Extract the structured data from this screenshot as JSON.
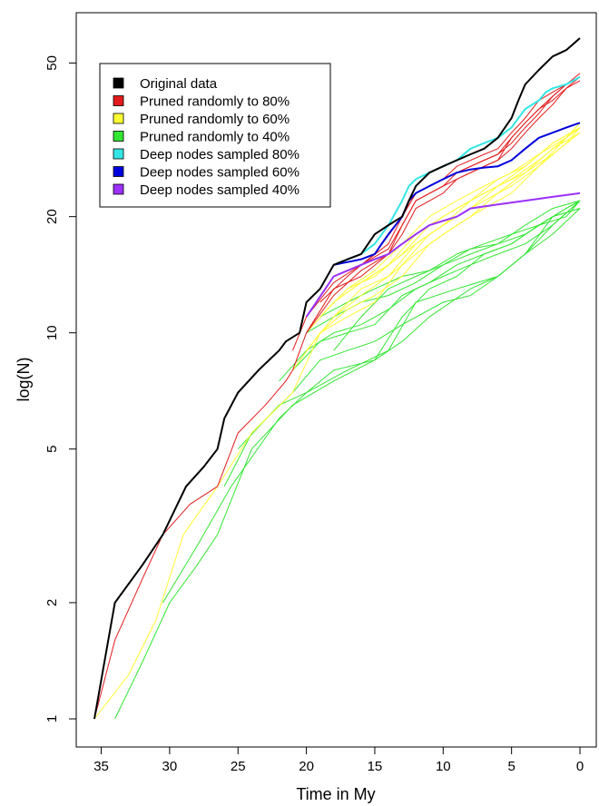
{
  "chart_data": {
    "type": "line",
    "title": "",
    "xlabel": "Time in My",
    "ylabel": "log(N)",
    "log_y": true,
    "x_reversed": true,
    "xlim": [
      35.5,
      0
    ],
    "ylim": [
      1,
      58
    ],
    "x_ticks": [
      35,
      30,
      25,
      20,
      15,
      10,
      5,
      0
    ],
    "y_ticks": [
      1,
      2,
      5,
      10,
      20,
      50
    ],
    "grid": false,
    "legend_position": "top-left",
    "legend": [
      {
        "label": "Original data",
        "color": "#000000"
      },
      {
        "label": "Pruned randomly to 80%",
        "color": "#e31a1c"
      },
      {
        "label": "Pruned randomly to 60%",
        "color": "#ffff33"
      },
      {
        "label": "Pruned randomly to 40%",
        "color": "#33e633"
      },
      {
        "label": "Deep nodes sampled 80%",
        "color": "#33e6e6"
      },
      {
        "label": "Deep nodes sampled 60%",
        "color": "#0000dd"
      },
      {
        "label": "Deep nodes sampled 40%",
        "color": "#9b30ff"
      }
    ],
    "series": [
      {
        "group": "Pruned randomly to 40%",
        "color": "#33e633",
        "width": 1,
        "x": [
          34,
          32,
          30,
          28,
          26.5,
          24,
          21,
          18,
          15,
          13,
          11,
          9,
          7,
          5,
          3,
          1,
          0
        ],
        "y": [
          1,
          1.4,
          2,
          2.5,
          3,
          5,
          6.5,
          7.5,
          8.5,
          11,
          13,
          14,
          16,
          17,
          19,
          20,
          22
        ]
      },
      {
        "group": "Pruned randomly to 40%",
        "color": "#33e633",
        "width": 1,
        "x": [
          30.5,
          28,
          25.5,
          22,
          20,
          17,
          14,
          12,
          9,
          6,
          4,
          2,
          0
        ],
        "y": [
          2,
          2.8,
          4,
          6,
          7,
          8,
          9,
          12,
          13,
          14,
          16,
          18,
          21
        ]
      },
      {
        "group": "Pruned randomly to 40%",
        "color": "#33e633",
        "width": 1,
        "x": [
          26,
          24,
          21,
          19,
          17,
          15,
          13,
          10,
          8,
          6,
          4,
          2,
          0
        ],
        "y": [
          4,
          5.5,
          7,
          8.5,
          9,
          9.5,
          10.5,
          12,
          12.5,
          14,
          16,
          19,
          22
        ]
      },
      {
        "group": "Pruned randomly to 40%",
        "color": "#33e633",
        "width": 1,
        "x": [
          25,
          22,
          20,
          18,
          15,
          13,
          11,
          8,
          6,
          4,
          2,
          0
        ],
        "y": [
          5,
          6.5,
          7,
          8,
          8.5,
          9.5,
          11,
          13,
          14,
          16,
          20,
          21
        ]
      },
      {
        "group": "Pruned randomly to 40%",
        "color": "#33e633",
        "width": 1,
        "x": [
          22,
          20,
          18,
          16,
          14,
          12,
          10,
          8,
          6,
          4,
          2,
          0
        ],
        "y": [
          7.5,
          9,
          10,
          10.5,
          11.5,
          13,
          14,
          15,
          16,
          17,
          19,
          22
        ]
      },
      {
        "group": "Pruned randomly to 40%",
        "color": "#33e633",
        "width": 1,
        "x": [
          21,
          19,
          17,
          15,
          13,
          11,
          9,
          7,
          5,
          3,
          1,
          0
        ],
        "y": [
          8,
          9.5,
          10,
          10.5,
          12.5,
          13.5,
          15,
          16,
          17,
          19,
          21,
          22
        ]
      },
      {
        "group": "Pruned randomly to 40%",
        "color": "#33e633",
        "width": 1,
        "x": [
          20,
          18,
          16,
          14,
          12,
          10,
          8,
          6,
          4,
          2,
          0
        ],
        "y": [
          10,
          11,
          12,
          12.5,
          13.5,
          15,
          16,
          17,
          18,
          20,
          21
        ]
      },
      {
        "group": "Pruned randomly to 40%",
        "color": "#33e633",
        "width": 1,
        "x": [
          19,
          17,
          15,
          13,
          11,
          9,
          7,
          5,
          3,
          1,
          0
        ],
        "y": [
          11,
          12,
          13,
          14,
          14.5,
          16,
          17,
          18,
          19,
          21,
          22
        ]
      },
      {
        "group": "Pruned randomly to 40%",
        "color": "#33e633",
        "width": 1,
        "x": [
          18,
          16,
          14,
          12,
          10,
          8,
          6,
          4,
          2,
          0
        ],
        "y": [
          9,
          11,
          13,
          14,
          15,
          16.5,
          17,
          19,
          21,
          22
        ]
      },
      {
        "group": "Pruned randomly to 60%",
        "color": "#ffff33",
        "width": 1,
        "x": [
          35.5,
          33,
          31,
          29,
          26.5,
          24,
          21,
          19,
          17,
          15,
          13,
          11,
          9,
          7,
          5,
          3,
          1,
          0
        ],
        "y": [
          1,
          1.3,
          1.8,
          3,
          4,
          5.5,
          7,
          10,
          11,
          12,
          15,
          18,
          20,
          22,
          24,
          27,
          32,
          34
        ]
      },
      {
        "group": "Pruned randomly to 60%",
        "color": "#ffff33",
        "width": 1,
        "x": [
          21,
          19,
          17,
          15,
          13,
          11,
          9,
          7,
          5,
          3,
          1,
          0
        ],
        "y": [
          8,
          10,
          11.5,
          12.5,
          14,
          17,
          19,
          21,
          23,
          27,
          31,
          34
        ]
      },
      {
        "group": "Pruned randomly to 60%",
        "color": "#ffff33",
        "width": 1,
        "x": [
          20,
          18,
          16,
          14,
          12,
          10,
          8,
          6,
          4,
          2,
          0
        ],
        "y": [
          9,
          11,
          13,
          14,
          16,
          18,
          20,
          23,
          26,
          30,
          33
        ]
      },
      {
        "group": "Pruned randomly to 60%",
        "color": "#ffff33",
        "width": 1,
        "x": [
          20,
          18,
          16,
          14,
          12,
          10,
          8,
          6,
          4,
          2,
          0
        ],
        "y": [
          10,
          12,
          13.5,
          15,
          17,
          19,
          22,
          24,
          27,
          31,
          34
        ]
      },
      {
        "group": "Pruned randomly to 60%",
        "color": "#ffff33",
        "width": 1,
        "x": [
          19,
          17,
          15,
          13,
          11,
          9,
          7,
          5,
          3,
          1,
          0
        ],
        "y": [
          11,
          13,
          14,
          16,
          19,
          21,
          23,
          25,
          28,
          32,
          35
        ]
      },
      {
        "group": "Pruned randomly to 60%",
        "color": "#ffff33",
        "width": 1,
        "x": [
          18,
          16,
          14,
          12,
          10,
          8,
          6,
          4,
          2,
          0
        ],
        "y": [
          12,
          13.5,
          15,
          18,
          20,
          22,
          25,
          27,
          31,
          34
        ]
      },
      {
        "group": "Pruned randomly to 60%",
        "color": "#ffff33",
        "width": 1,
        "x": [
          18,
          16,
          14,
          12,
          10,
          8,
          6,
          4,
          2,
          0
        ],
        "y": [
          11,
          12.5,
          14,
          17,
          19,
          21,
          24,
          26,
          29,
          33
        ]
      },
      {
        "group": "Pruned randomly to 60%",
        "color": "#ffff33",
        "width": 1,
        "x": [
          17,
          15,
          13,
          11,
          9,
          7,
          5,
          3,
          1,
          0
        ],
        "y": [
          13,
          14.5,
          17,
          20,
          22,
          24,
          26,
          29,
          32,
          35
        ]
      },
      {
        "group": "Pruned randomly to 80%",
        "color": "#e31a1c",
        "width": 1,
        "x": [
          35.5,
          34,
          32,
          30.5,
          28.5,
          26.5,
          25,
          23,
          21.5,
          21,
          20,
          18,
          16,
          14,
          13,
          12,
          10,
          9,
          7,
          6,
          5,
          4,
          3,
          2,
          1,
          0
        ],
        "y": [
          1,
          1.6,
          2.3,
          3,
          3.6,
          4,
          5.5,
          6.5,
          7.5,
          8,
          10,
          13,
          14,
          16,
          19,
          22,
          24,
          25,
          27,
          28,
          32,
          35,
          38,
          40,
          43,
          46
        ]
      },
      {
        "group": "Pruned randomly to 80%",
        "color": "#e31a1c",
        "width": 1,
        "x": [
          21,
          20,
          18,
          16,
          14,
          13,
          12,
          10,
          9,
          7,
          6,
          5,
          4,
          3,
          2,
          1,
          0
        ],
        "y": [
          9,
          11,
          14,
          15,
          17,
          20,
          23,
          25,
          27,
          29,
          30,
          33,
          36,
          40,
          42,
          44,
          47
        ]
      },
      {
        "group": "Pruned randomly to 80%",
        "color": "#e31a1c",
        "width": 1,
        "x": [
          20,
          18,
          16,
          14,
          13,
          12,
          10,
          9,
          7,
          6,
          5,
          4,
          3,
          2,
          1,
          0
        ],
        "y": [
          11,
          13.5,
          15,
          16.5,
          19,
          22,
          24,
          26,
          28,
          29,
          31,
          34,
          37,
          41,
          44,
          46
        ]
      },
      {
        "group": "Pruned randomly to 80%",
        "color": "#e31a1c",
        "width": 1,
        "x": [
          20,
          18,
          16,
          14,
          13,
          12,
          10,
          9,
          7,
          6,
          5,
          4,
          3,
          2,
          1,
          0
        ],
        "y": [
          10,
          12.5,
          14.5,
          16,
          18,
          21,
          23,
          25,
          27,
          28,
          30,
          33,
          36,
          39,
          43,
          45
        ]
      },
      {
        "group": "Pruned randomly to 80%",
        "color": "#e31a1c",
        "width": 1,
        "x": [
          19,
          17,
          15,
          13,
          12,
          10,
          9,
          7,
          6,
          5,
          4,
          3,
          2,
          1,
          0
        ],
        "y": [
          12,
          14,
          16,
          20,
          23,
          25,
          26,
          28,
          29,
          32,
          35,
          38,
          41,
          44,
          46
        ]
      },
      {
        "group": "Deep nodes sampled 80%",
        "color": "#33e6e6",
        "width": 2,
        "x": [
          18,
          17,
          16,
          15,
          14,
          13,
          12.5,
          12,
          11,
          10,
          9,
          8,
          7,
          6,
          5,
          4.5,
          4,
          3,
          2.5,
          2,
          1,
          0
        ],
        "y": [
          15,
          15.5,
          16,
          17,
          19,
          22,
          24,
          25,
          26,
          27,
          28,
          30,
          31,
          32,
          34,
          36,
          38,
          40,
          42,
          43,
          44,
          46
        ]
      },
      {
        "group": "Deep nodes sampled 60%",
        "color": "#0000dd",
        "width": 2,
        "x": [
          18,
          16,
          15,
          14.5,
          14,
          13,
          12.5,
          12,
          11,
          10,
          9,
          8,
          7,
          6,
          5,
          4,
          3,
          2,
          1,
          0
        ],
        "y": [
          15,
          15.5,
          16,
          17,
          18,
          20,
          22,
          23,
          24,
          25,
          26,
          26.5,
          26.8,
          27,
          28,
          30,
          32,
          33,
          34,
          35
        ]
      },
      {
        "group": "Deep nodes sampled 40%",
        "color": "#9b30ff",
        "width": 2,
        "x": [
          20,
          18,
          16,
          15,
          14,
          13,
          12,
          11,
          10,
          9,
          8,
          6,
          4,
          2,
          0
        ],
        "y": [
          11,
          14,
          15,
          15.5,
          16,
          17,
          18,
          19,
          19.5,
          20,
          21,
          21.5,
          22,
          22.5,
          23
        ]
      },
      {
        "group": "Original data",
        "color": "#000000",
        "width": 2,
        "x": [
          35.5,
          34,
          32,
          30.5,
          28.8,
          27.5,
          26.5,
          26,
          25,
          23.5,
          22,
          21.5,
          20.5,
          20,
          19,
          18,
          17,
          16,
          15,
          14,
          13,
          12.5,
          12,
          11,
          10,
          9,
          8,
          7,
          6,
          5,
          4.5,
          4,
          3,
          2,
          1,
          0
        ],
        "y": [
          1,
          2,
          2.5,
          3,
          4,
          4.5,
          5,
          6,
          7,
          8,
          9,
          9.5,
          10,
          12,
          13,
          15,
          15.5,
          16,
          18,
          19,
          20,
          22,
          24,
          26,
          27,
          28,
          29,
          30,
          32,
          36,
          40,
          44,
          48,
          52,
          54,
          58
        ]
      }
    ]
  }
}
